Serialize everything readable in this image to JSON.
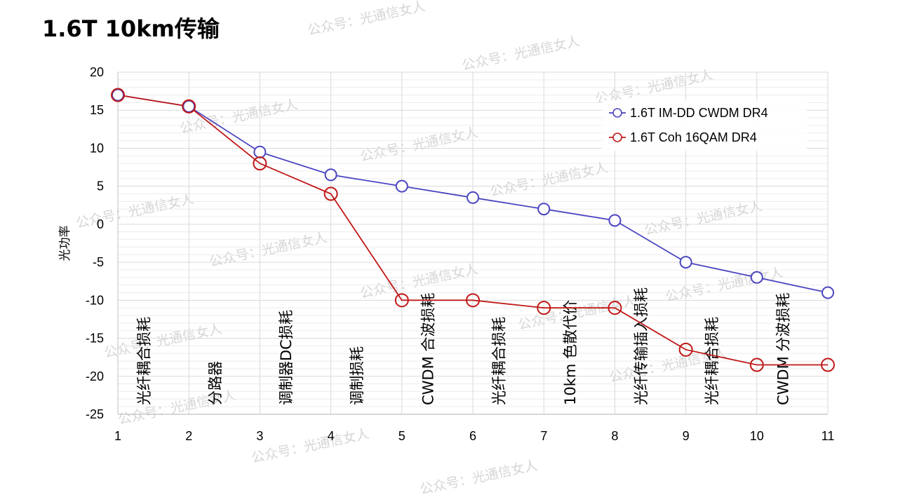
{
  "page": {
    "title": "1.6T 10km传输",
    "watermark": "公众号：光通信女人"
  },
  "colors": {
    "series_imdd": "#4b45c0",
    "series_coh": "#c01818",
    "grid": "#d9d9d9",
    "axis": "#bfbfbf",
    "watermark": "#c8c8c8"
  },
  "chart_data": {
    "type": "line",
    "title": "",
    "xlabel": "",
    "ylabel": "光功率",
    "xlim": [
      1,
      11
    ],
    "ylim": [
      -25,
      20
    ],
    "x": [
      1,
      2,
      3,
      4,
      5,
      6,
      7,
      8,
      9,
      10,
      11
    ],
    "x_ticks": [
      "1",
      "2",
      "3",
      "4",
      "5",
      "6",
      "7",
      "8",
      "9",
      "10",
      "11"
    ],
    "y_ticks": [
      "20",
      "15",
      "10",
      "5",
      "0",
      "-5",
      "-10",
      "-15",
      "-20",
      "-25"
    ],
    "grid": true,
    "legend_position": "top-right",
    "series": [
      {
        "name": "1.6T IM-DD CWDM DR4",
        "color": "#4b45c0",
        "marker": "small-circle",
        "values": [
          17,
          15.5,
          9.5,
          6.5,
          5,
          3.5,
          2,
          0.5,
          -5,
          -7,
          -9
        ]
      },
      {
        "name": "1.6T Coh 16QAM DR4",
        "color": "#c01818",
        "marker": "large-hollow-circle",
        "values": [
          17,
          15.5,
          8,
          4,
          -10,
          -10,
          -11,
          -11,
          -16.5,
          -18.5,
          -18.5
        ]
      }
    ],
    "annotations": [
      "光纤耦合损耗",
      "分路器",
      "调制器DC损耗",
      "调制损耗",
      "CWDM 合波损耗",
      "光纤耦合损耗",
      "10km 色散代价",
      "光纤传输插入损耗",
      "光纤耦合损耗",
      "CWDM 分波损耗"
    ]
  }
}
